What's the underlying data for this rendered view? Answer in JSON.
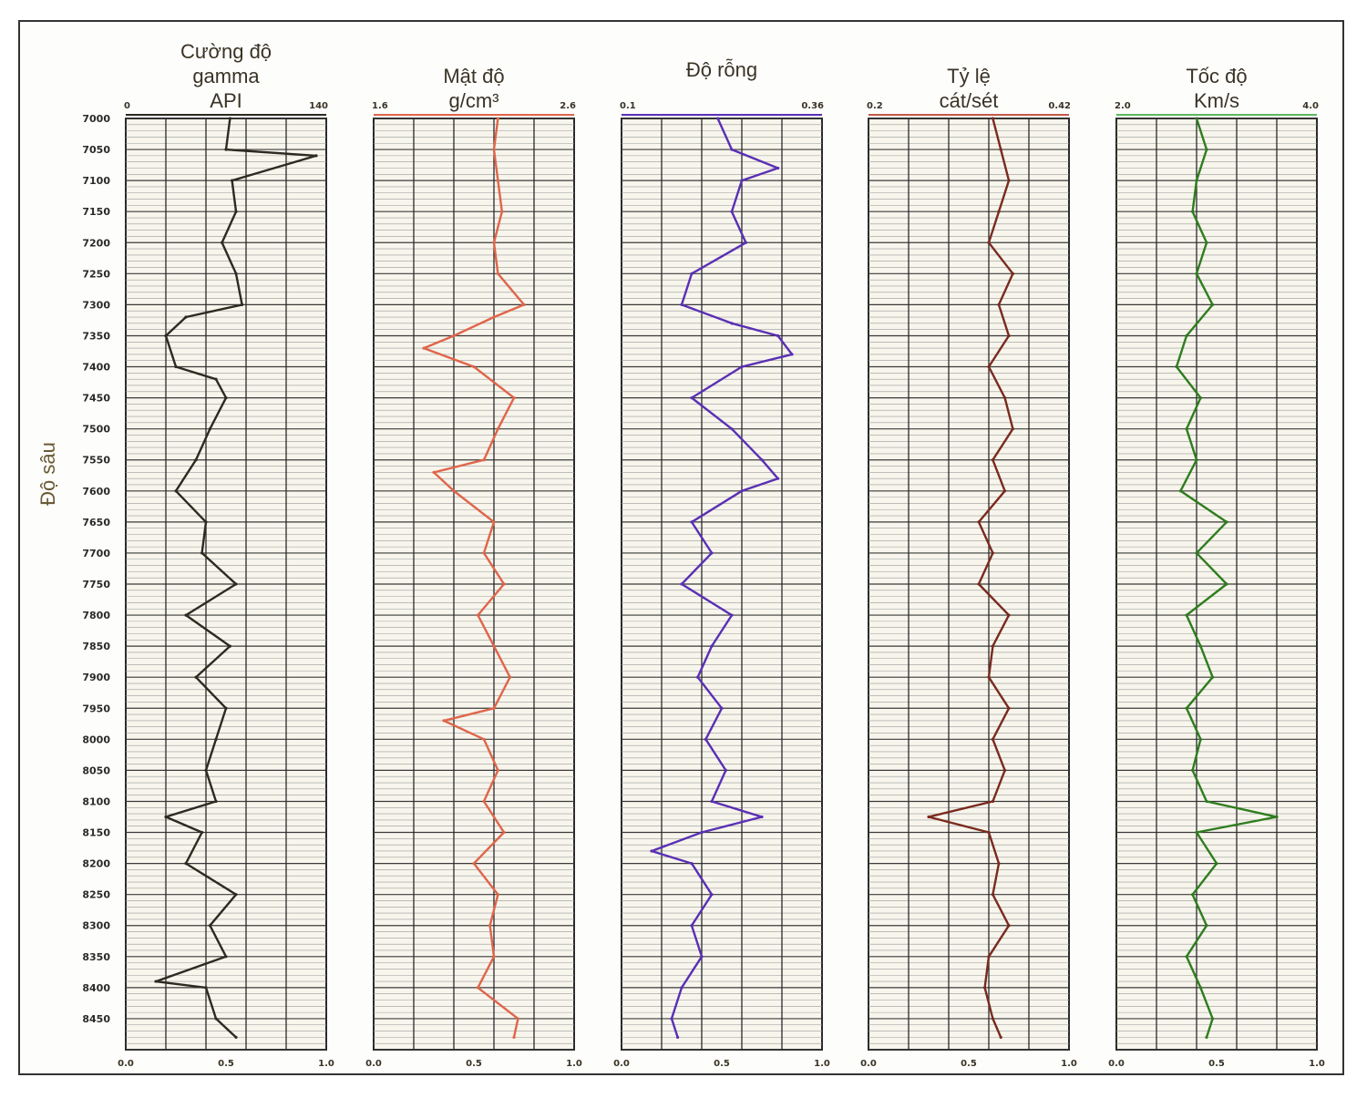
{
  "chart_data": {
    "type": "line",
    "ylabel": "Độ sâu",
    "depth_ticks": [
      "7000",
      "7050",
      "7100",
      "7150",
      "7200",
      "7250",
      "7300",
      "7350",
      "7400",
      "7450",
      "7500",
      "7550",
      "7600",
      "7650",
      "7700",
      "7750",
      "7800",
      "7850",
      "7900",
      "7950",
      "8000",
      "8050",
      "8100",
      "8150",
      "8200",
      "8250",
      "8300",
      "8350",
      "8400",
      "8450"
    ],
    "depth_range": [
      7000,
      8500
    ],
    "xlim": [
      0.0,
      1.0
    ],
    "bottom_ticks": [
      "0.0",
      "0.5",
      "1.0"
    ],
    "grid": true,
    "tracks": [
      {
        "title": [
          "Cường độ",
          "gamma",
          "API"
        ],
        "scale_min": "0",
        "scale_max": "140",
        "color": "#2d2a22",
        "header_line_color": "#2d2a22",
        "series": [
          {
            "depth": 7000,
            "value": 0.52
          },
          {
            "depth": 7050,
            "value": 0.5
          },
          {
            "depth": 7060,
            "value": 0.95
          },
          {
            "depth": 7100,
            "value": 0.53
          },
          {
            "depth": 7150,
            "value": 0.55
          },
          {
            "depth": 7200,
            "value": 0.48
          },
          {
            "depth": 7250,
            "value": 0.55
          },
          {
            "depth": 7300,
            "value": 0.58
          },
          {
            "depth": 7320,
            "value": 0.3
          },
          {
            "depth": 7350,
            "value": 0.2
          },
          {
            "depth": 7400,
            "value": 0.25
          },
          {
            "depth": 7420,
            "value": 0.45
          },
          {
            "depth": 7450,
            "value": 0.5
          },
          {
            "depth": 7500,
            "value": 0.42
          },
          {
            "depth": 7550,
            "value": 0.35
          },
          {
            "depth": 7600,
            "value": 0.25
          },
          {
            "depth": 7650,
            "value": 0.4
          },
          {
            "depth": 7700,
            "value": 0.38
          },
          {
            "depth": 7750,
            "value": 0.55
          },
          {
            "depth": 7800,
            "value": 0.3
          },
          {
            "depth": 7850,
            "value": 0.52
          },
          {
            "depth": 7900,
            "value": 0.35
          },
          {
            "depth": 7950,
            "value": 0.5
          },
          {
            "depth": 8000,
            "value": 0.45
          },
          {
            "depth": 8050,
            "value": 0.4
          },
          {
            "depth": 8100,
            "value": 0.45
          },
          {
            "depth": 8125,
            "value": 0.2
          },
          {
            "depth": 8150,
            "value": 0.38
          },
          {
            "depth": 8200,
            "value": 0.3
          },
          {
            "depth": 8250,
            "value": 0.55
          },
          {
            "depth": 8300,
            "value": 0.42
          },
          {
            "depth": 8350,
            "value": 0.5
          },
          {
            "depth": 8390,
            "value": 0.15
          },
          {
            "depth": 8400,
            "value": 0.4
          },
          {
            "depth": 8450,
            "value": 0.45
          },
          {
            "depth": 8480,
            "value": 0.55
          }
        ]
      },
      {
        "title": [
          "Mật độ",
          "g/cm³"
        ],
        "scale_min": "1.6",
        "scale_max": "2.6",
        "color": "#e0654a",
        "header_line_color": "#e0654a",
        "series": [
          {
            "depth": 7000,
            "value": 0.62
          },
          {
            "depth": 7050,
            "value": 0.6
          },
          {
            "depth": 7100,
            "value": 0.62
          },
          {
            "depth": 7150,
            "value": 0.64
          },
          {
            "depth": 7200,
            "value": 0.6
          },
          {
            "depth": 7250,
            "value": 0.62
          },
          {
            "depth": 7300,
            "value": 0.75
          },
          {
            "depth": 7320,
            "value": 0.6
          },
          {
            "depth": 7350,
            "value": 0.4
          },
          {
            "depth": 7370,
            "value": 0.25
          },
          {
            "depth": 7400,
            "value": 0.5
          },
          {
            "depth": 7450,
            "value": 0.7
          },
          {
            "depth": 7500,
            "value": 0.62
          },
          {
            "depth": 7550,
            "value": 0.55
          },
          {
            "depth": 7570,
            "value": 0.3
          },
          {
            "depth": 7600,
            "value": 0.4
          },
          {
            "depth": 7650,
            "value": 0.6
          },
          {
            "depth": 7700,
            "value": 0.55
          },
          {
            "depth": 7750,
            "value": 0.65
          },
          {
            "depth": 7800,
            "value": 0.52
          },
          {
            "depth": 7850,
            "value": 0.6
          },
          {
            "depth": 7900,
            "value": 0.68
          },
          {
            "depth": 7950,
            "value": 0.6
          },
          {
            "depth": 7970,
            "value": 0.35
          },
          {
            "depth": 8000,
            "value": 0.55
          },
          {
            "depth": 8050,
            "value": 0.62
          },
          {
            "depth": 8100,
            "value": 0.55
          },
          {
            "depth": 8150,
            "value": 0.65
          },
          {
            "depth": 8200,
            "value": 0.5
          },
          {
            "depth": 8250,
            "value": 0.62
          },
          {
            "depth": 8300,
            "value": 0.58
          },
          {
            "depth": 8350,
            "value": 0.6
          },
          {
            "depth": 8400,
            "value": 0.52
          },
          {
            "depth": 8450,
            "value": 0.72
          },
          {
            "depth": 8480,
            "value": 0.7
          }
        ]
      },
      {
        "title": [
          "Độ rỗng"
        ],
        "scale_min": "0.1",
        "scale_max": "0.36",
        "color": "#5a2fb5",
        "header_line_color": "#5a2fb5",
        "series": [
          {
            "depth": 7000,
            "value": 0.48
          },
          {
            "depth": 7050,
            "value": 0.55
          },
          {
            "depth": 7080,
            "value": 0.78
          },
          {
            "depth": 7100,
            "value": 0.6
          },
          {
            "depth": 7150,
            "value": 0.55
          },
          {
            "depth": 7200,
            "value": 0.62
          },
          {
            "depth": 7250,
            "value": 0.35
          },
          {
            "depth": 7300,
            "value": 0.3
          },
          {
            "depth": 7330,
            "value": 0.55
          },
          {
            "depth": 7350,
            "value": 0.78
          },
          {
            "depth": 7380,
            "value": 0.85
          },
          {
            "depth": 7400,
            "value": 0.6
          },
          {
            "depth": 7450,
            "value": 0.35
          },
          {
            "depth": 7500,
            "value": 0.55
          },
          {
            "depth": 7550,
            "value": 0.7
          },
          {
            "depth": 7580,
            "value": 0.78
          },
          {
            "depth": 7600,
            "value": 0.6
          },
          {
            "depth": 7650,
            "value": 0.35
          },
          {
            "depth": 7700,
            "value": 0.45
          },
          {
            "depth": 7750,
            "value": 0.3
          },
          {
            "depth": 7800,
            "value": 0.55
          },
          {
            "depth": 7850,
            "value": 0.45
          },
          {
            "depth": 7900,
            "value": 0.38
          },
          {
            "depth": 7950,
            "value": 0.5
          },
          {
            "depth": 8000,
            "value": 0.42
          },
          {
            "depth": 8050,
            "value": 0.52
          },
          {
            "depth": 8100,
            "value": 0.45
          },
          {
            "depth": 8125,
            "value": 0.7
          },
          {
            "depth": 8150,
            "value": 0.4
          },
          {
            "depth": 8180,
            "value": 0.15
          },
          {
            "depth": 8200,
            "value": 0.35
          },
          {
            "depth": 8250,
            "value": 0.45
          },
          {
            "depth": 8300,
            "value": 0.35
          },
          {
            "depth": 8350,
            "value": 0.4
          },
          {
            "depth": 8400,
            "value": 0.3
          },
          {
            "depth": 8450,
            "value": 0.25
          },
          {
            "depth": 8480,
            "value": 0.28
          }
        ]
      },
      {
        "title": [
          "Tỷ lệ",
          "cát/sét"
        ],
        "scale_min": "0.2",
        "scale_max": "0.42",
        "color": "#7a2a1e",
        "header_line_color": "#c45a48",
        "series": [
          {
            "depth": 7000,
            "value": 0.62
          },
          {
            "depth": 7050,
            "value": 0.66
          },
          {
            "depth": 7100,
            "value": 0.7
          },
          {
            "depth": 7150,
            "value": 0.65
          },
          {
            "depth": 7200,
            "value": 0.6
          },
          {
            "depth": 7250,
            "value": 0.72
          },
          {
            "depth": 7300,
            "value": 0.65
          },
          {
            "depth": 7350,
            "value": 0.7
          },
          {
            "depth": 7400,
            "value": 0.6
          },
          {
            "depth": 7450,
            "value": 0.68
          },
          {
            "depth": 7500,
            "value": 0.72
          },
          {
            "depth": 7550,
            "value": 0.62
          },
          {
            "depth": 7600,
            "value": 0.68
          },
          {
            "depth": 7650,
            "value": 0.55
          },
          {
            "depth": 7700,
            "value": 0.62
          },
          {
            "depth": 7750,
            "value": 0.55
          },
          {
            "depth": 7800,
            "value": 0.7
          },
          {
            "depth": 7850,
            "value": 0.62
          },
          {
            "depth": 7900,
            "value": 0.6
          },
          {
            "depth": 7950,
            "value": 0.7
          },
          {
            "depth": 8000,
            "value": 0.62
          },
          {
            "depth": 8050,
            "value": 0.68
          },
          {
            "depth": 8100,
            "value": 0.62
          },
          {
            "depth": 8125,
            "value": 0.3
          },
          {
            "depth": 8150,
            "value": 0.6
          },
          {
            "depth": 8200,
            "value": 0.65
          },
          {
            "depth": 8250,
            "value": 0.62
          },
          {
            "depth": 8300,
            "value": 0.7
          },
          {
            "depth": 8350,
            "value": 0.6
          },
          {
            "depth": 8400,
            "value": 0.58
          },
          {
            "depth": 8450,
            "value": 0.62
          },
          {
            "depth": 8480,
            "value": 0.66
          }
        ]
      },
      {
        "title": [
          "Tốc độ",
          "Km/s"
        ],
        "scale_min": "2.0",
        "scale_max": "4.0",
        "color": "#2e7d1e",
        "header_line_color": "#5cb85c",
        "series": [
          {
            "depth": 7000,
            "value": 0.4
          },
          {
            "depth": 7050,
            "value": 0.45
          },
          {
            "depth": 7100,
            "value": 0.4
          },
          {
            "depth": 7150,
            "value": 0.38
          },
          {
            "depth": 7200,
            "value": 0.45
          },
          {
            "depth": 7250,
            "value": 0.4
          },
          {
            "depth": 7300,
            "value": 0.48
          },
          {
            "depth": 7350,
            "value": 0.35
          },
          {
            "depth": 7400,
            "value": 0.3
          },
          {
            "depth": 7450,
            "value": 0.42
          },
          {
            "depth": 7500,
            "value": 0.35
          },
          {
            "depth": 7550,
            "value": 0.4
          },
          {
            "depth": 7600,
            "value": 0.32
          },
          {
            "depth": 7650,
            "value": 0.55
          },
          {
            "depth": 7700,
            "value": 0.4
          },
          {
            "depth": 7750,
            "value": 0.55
          },
          {
            "depth": 7800,
            "value": 0.35
          },
          {
            "depth": 7850,
            "value": 0.42
          },
          {
            "depth": 7900,
            "value": 0.48
          },
          {
            "depth": 7950,
            "value": 0.35
          },
          {
            "depth": 8000,
            "value": 0.42
          },
          {
            "depth": 8050,
            "value": 0.38
          },
          {
            "depth": 8100,
            "value": 0.45
          },
          {
            "depth": 8125,
            "value": 0.8
          },
          {
            "depth": 8150,
            "value": 0.4
          },
          {
            "depth": 8200,
            "value": 0.5
          },
          {
            "depth": 8250,
            "value": 0.38
          },
          {
            "depth": 8300,
            "value": 0.45
          },
          {
            "depth": 8350,
            "value": 0.35
          },
          {
            "depth": 8400,
            "value": 0.42
          },
          {
            "depth": 8450,
            "value": 0.48
          },
          {
            "depth": 8480,
            "value": 0.45
          }
        ]
      }
    ]
  }
}
